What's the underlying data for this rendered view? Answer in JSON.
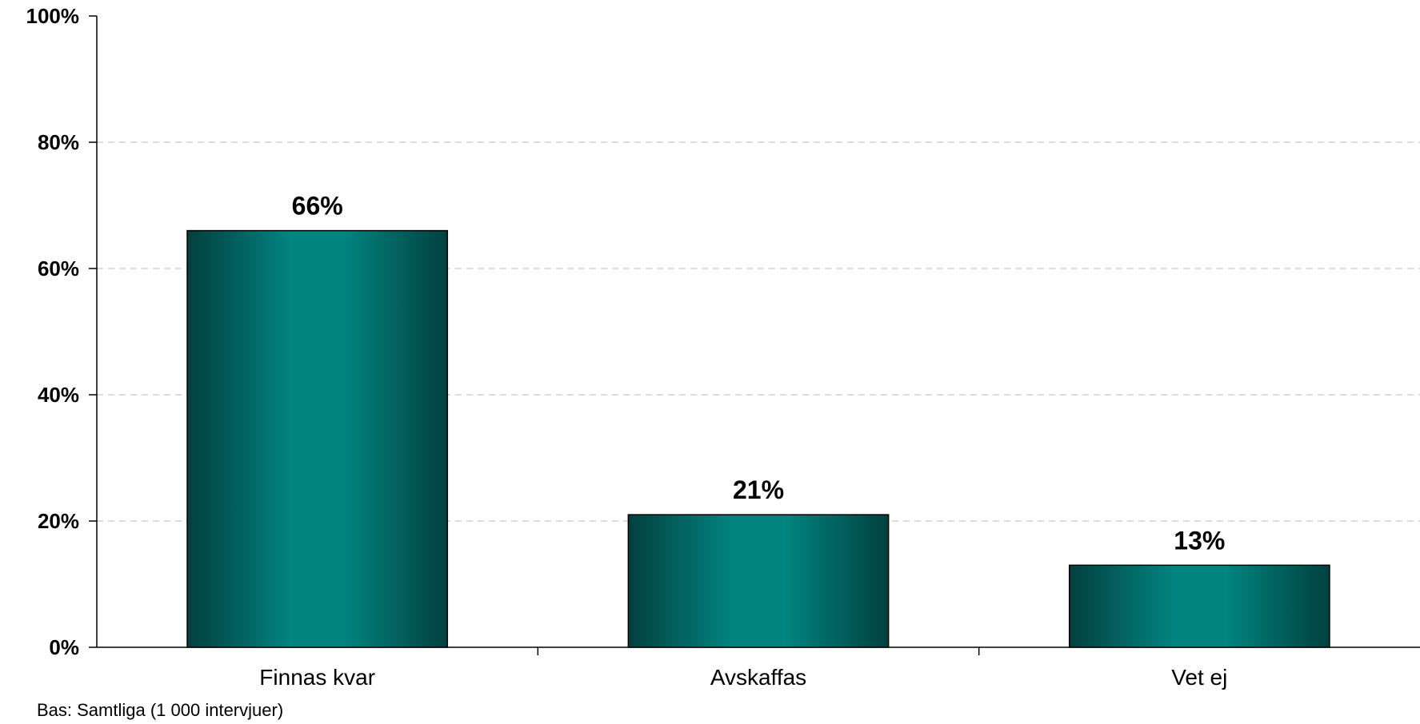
{
  "chart_data": {
    "type": "bar",
    "categories": [
      "Finnas kvar",
      "Avskaffas",
      "Vet ej"
    ],
    "values": [
      66,
      21,
      13
    ],
    "data_labels": [
      "66%",
      "21%",
      "13%"
    ],
    "ylim": [
      0,
      100
    ],
    "yticks": [
      0,
      20,
      40,
      60,
      80,
      100
    ],
    "ytick_labels": [
      "0%",
      "20%",
      "40%",
      "60%",
      "80%",
      "100%"
    ],
    "grid": true,
    "legend": "none",
    "colors": {
      "bar_edge": "#01403F",
      "bar_center": "#028480",
      "bar_outline": "#000000",
      "grid": "#c8c8c8"
    }
  },
  "footnote": "Bas: Samtliga (1 000 intervjuer)"
}
